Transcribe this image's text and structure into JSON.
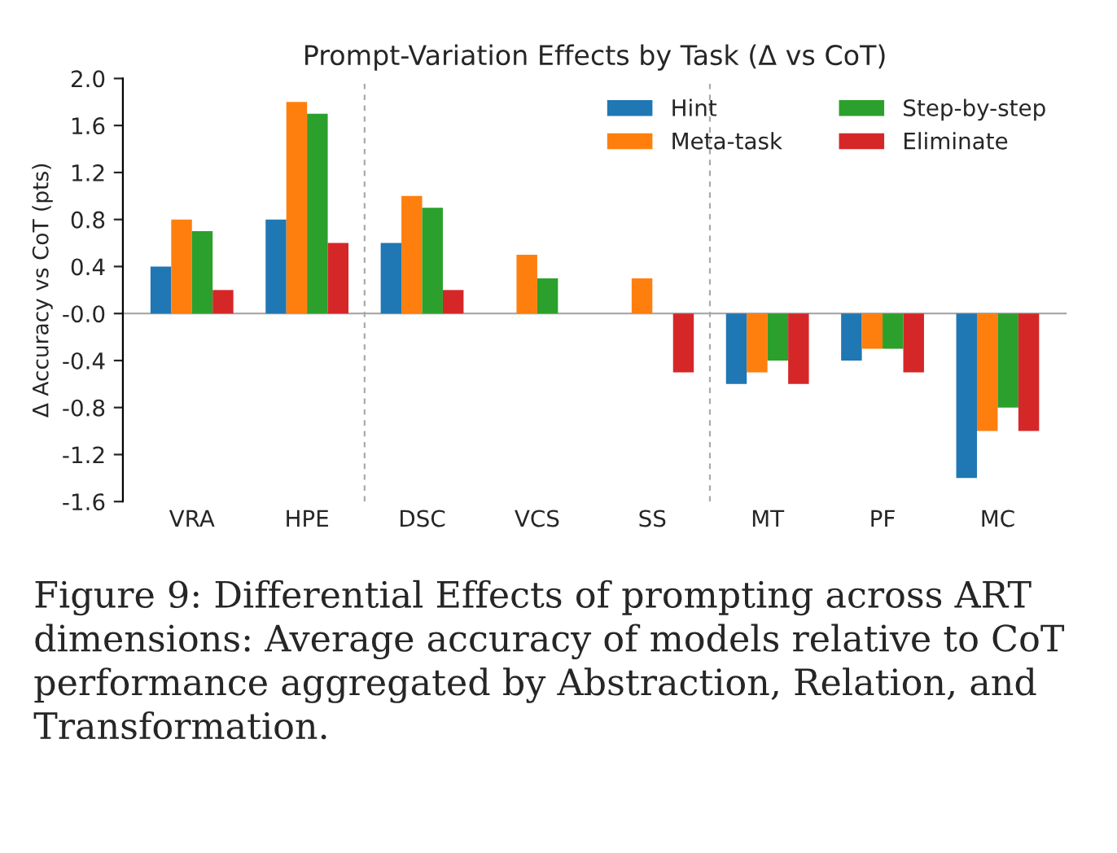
{
  "chart_data": {
    "type": "bar",
    "title": "Prompt-Variation Effects by Task (Δ vs CoT)",
    "ylabel": "Δ Accuracy vs CoT (pts)",
    "categories": [
      "VRA",
      "HPE",
      "DSC",
      "VCS",
      "SS",
      "MT",
      "PF",
      "MC"
    ],
    "series": [
      {
        "name": "Hint",
        "color": "#1f77b4",
        "values": [
          0.4,
          0.8,
          0.6,
          null,
          null,
          -0.6,
          -0.4,
          -1.4
        ]
      },
      {
        "name": "Meta-task",
        "color": "#ff7f0e",
        "values": [
          0.8,
          1.8,
          1.0,
          0.5,
          0.3,
          -0.5,
          -0.3,
          -1.0
        ]
      },
      {
        "name": "Step-by-step",
        "color": "#2ca02c",
        "values": [
          0.7,
          1.7,
          0.9,
          0.3,
          null,
          -0.4,
          -0.3,
          -0.8
        ]
      },
      {
        "name": "Eliminate",
        "color": "#d62728",
        "values": [
          0.2,
          0.6,
          0.2,
          null,
          -0.5,
          -0.6,
          -0.5,
          -1.0
        ]
      }
    ],
    "ylim": [
      -1.6,
      2.0
    ],
    "yticks": [
      -1.6,
      -1.2,
      -0.8,
      -0.4,
      {
        "value": 0,
        "label": "-0.0"
      },
      0.4,
      0.8,
      1.2,
      1.6,
      {
        "value": 2,
        "label": "2.0"
      }
    ],
    "ref_lines": [
      {
        "axis": "y",
        "value": 0,
        "color": "#aaaaaa",
        "line_style": "solid"
      }
    ],
    "grid": false,
    "legend": "top right",
    "annotations": [
      "Figure 9: Differential Effects of prompting across ART dimensions: Average accuracy of models relative to CoT performance aggregated by Abstraction, Relation, and Transformation."
    ]
  }
}
